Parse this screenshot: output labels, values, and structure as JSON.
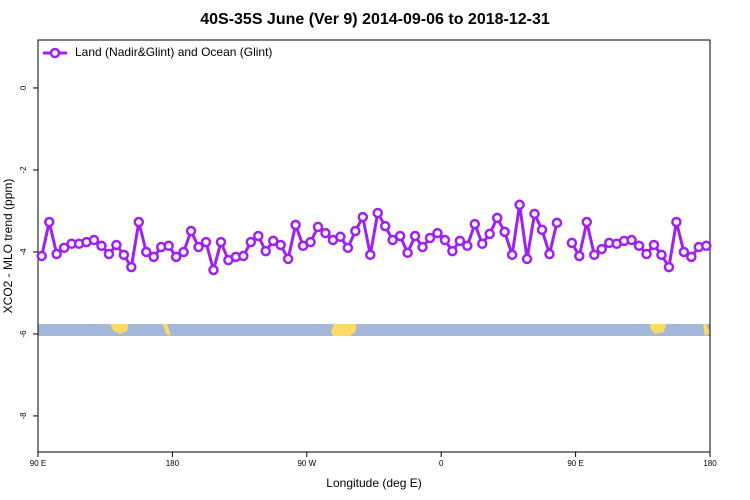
{
  "chart_data": {
    "type": "line",
    "title": "40S-35S June (Ver 9)   2014-09-06 to 2018-12-31",
    "x_label": "Longitude (deg E)",
    "y_label": "XCO2 - MLO trend (ppm)",
    "xlim": [
      90,
      540
    ],
    "ylim": [
      -8.88,
      1.17
    ],
    "xticks": [
      {
        "value": 90,
        "label": "90 E"
      },
      {
        "value": 180,
        "label": "180"
      },
      {
        "value": 270,
        "label": "90 W"
      },
      {
        "value": 360,
        "label": "0"
      },
      {
        "value": 450,
        "label": "90 E"
      },
      {
        "value": 540,
        "label": "180"
      }
    ],
    "yticks": [
      0,
      -2,
      -4,
      -6,
      -8
    ],
    "grid": false,
    "legend_position": "top-left",
    "x": [
      92.5,
      97.5,
      102.5,
      107.5,
      112.5,
      117.5,
      122.5,
      127.5,
      132.5,
      137.5,
      142.5,
      147.5,
      152.5,
      157.5,
      162.5,
      167.5,
      172.5,
      177.5,
      182.5,
      187.5,
      192.5,
      197.5,
      202.5,
      207.5,
      212.5,
      217.5,
      222.5,
      227.5,
      232.5,
      237.5,
      242.5,
      247.5,
      252.5,
      257.5,
      262.5,
      267.5,
      272.5,
      277.5,
      282.5,
      287.5,
      292.5,
      297.5,
      302.5,
      307.5,
      312.5,
      317.5,
      322.5,
      327.5,
      332.5,
      337.5,
      342.5,
      347.5,
      352.5,
      357.5,
      362.5,
      367.5,
      372.5,
      377.5,
      382.5,
      387.5,
      392.5,
      397.5,
      402.5,
      407.5,
      412.5,
      417.5,
      422.5,
      427.5,
      432.5,
      437.5,
      442.5,
      447.5,
      452.5,
      457.5,
      462.5,
      467.5,
      472.5,
      477.5,
      482.5,
      487.5,
      492.5,
      497.5,
      502.5,
      507.5,
      512.5,
      517.5,
      522.5,
      527.5,
      532.5,
      537.5
    ],
    "series": [
      {
        "name": "Land (Nadir&Glint) and Ocean (Glint)",
        "color": "#a020f0",
        "values": [
          -4.1,
          -3.27,
          -4.05,
          -3.9,
          -3.8,
          -3.8,
          -3.76,
          -3.71,
          -3.85,
          -4.05,
          -3.83,
          -4.07,
          -4.37,
          -3.27,
          -4.0,
          -4.12,
          -3.88,
          -3.85,
          -4.12,
          -4.0,
          -3.49,
          -3.88,
          -3.76,
          -4.44,
          -3.76,
          -4.2,
          -4.12,
          -4.1,
          -3.76,
          -3.61,
          -3.98,
          -3.73,
          -3.83,
          -4.17,
          -3.34,
          -3.85,
          -3.76,
          -3.39,
          -3.54,
          -3.71,
          -3.63,
          -3.9,
          -3.49,
          -3.15,
          -4.07,
          -3.05,
          -3.37,
          -3.71,
          -3.61,
          -4.02,
          -3.61,
          -3.88,
          -3.66,
          -3.54,
          -3.71,
          -3.98,
          -3.73,
          -3.85,
          -3.32,
          -3.8,
          -3.56,
          -3.17,
          -3.51,
          -4.07,
          -2.85,
          -4.17,
          -3.07,
          -3.46,
          -4.05,
          -3.29,
          null,
          -3.78,
          -4.1,
          -3.27,
          -4.07,
          -3.93,
          -3.78,
          -3.8,
          -3.73,
          -3.71,
          -3.85,
          -4.05,
          -3.83,
          -4.07,
          -4.37,
          -3.27,
          -4.0,
          -4.12,
          -3.88,
          -3.85
        ]
      }
    ]
  }
}
